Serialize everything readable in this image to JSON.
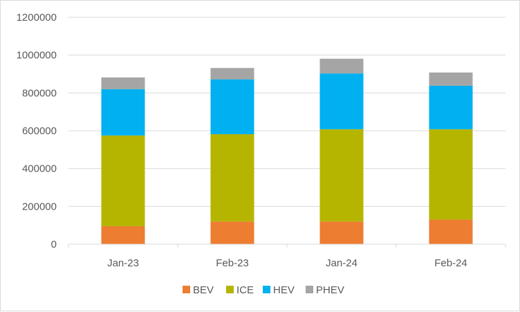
{
  "chart_data": {
    "type": "bar",
    "stacked": true,
    "title": "",
    "xlabel": "",
    "ylabel": "",
    "categories": [
      "Jan-23",
      "Feb-23",
      "Jan-24",
      "Feb-24"
    ],
    "series": [
      {
        "name": "BEV",
        "color": "#ed7d31",
        "values": [
          95000,
          120000,
          120000,
          130000
        ]
      },
      {
        "name": "ICE",
        "color": "#b5b500",
        "values": [
          480000,
          462000,
          488000,
          478000
        ]
      },
      {
        "name": "HEV",
        "color": "#00b0f0",
        "values": [
          245000,
          290000,
          295000,
          230000
        ]
      },
      {
        "name": "PHEV",
        "color": "#a5a5a5",
        "values": [
          62000,
          60000,
          78000,
          70000
        ]
      }
    ],
    "ylim": [
      0,
      1200000
    ],
    "yticks": [
      "0",
      "200000",
      "400000",
      "600000",
      "800000",
      "1000000",
      "1200000"
    ],
    "grid": true,
    "legend_position": "bottom"
  }
}
